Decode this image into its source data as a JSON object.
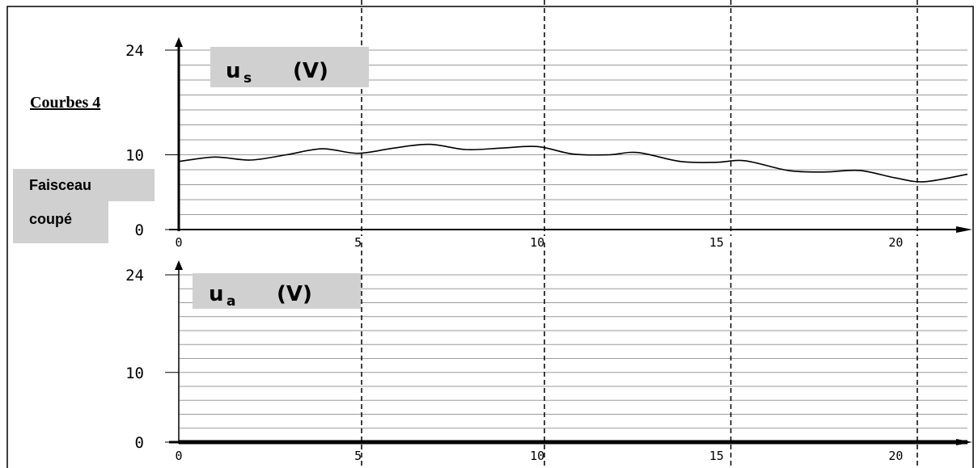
{
  "annotations": {
    "title": "Courbes 4",
    "beam_line1": "Faisceau",
    "beam_line2": "coupé"
  },
  "chart_data": [
    {
      "type": "line",
      "y_label_main": "u",
      "y_label_sub": "s",
      "y_label_unit": "(V)",
      "ylim": [
        0,
        24
      ],
      "y_ticks": [
        0,
        10,
        24
      ],
      "xlim": [
        0,
        22
      ],
      "x_ticks": [
        0,
        5,
        10,
        15,
        20
      ],
      "grid": true,
      "dashed_x": [
        5.1,
        10.2,
        15.4,
        20.6
      ],
      "series": [
        {
          "x": [
            0,
            1,
            2,
            3,
            4,
            5,
            6,
            7,
            8,
            9,
            10,
            11,
            12,
            12.8,
            14,
            15,
            15.8,
            17,
            18,
            19,
            20,
            20.8,
            22
          ],
          "y": [
            9.1,
            9.7,
            9.3,
            10.0,
            10.8,
            10.2,
            10.9,
            11.4,
            10.7,
            10.9,
            11.1,
            10.1,
            10.0,
            10.3,
            9.1,
            9.0,
            9.2,
            7.9,
            7.7,
            7.9,
            6.9,
            6.4,
            7.4
          ]
        }
      ]
    },
    {
      "type": "line",
      "y_label_main": "u",
      "y_label_sub": "a",
      "y_label_unit": "(V)",
      "ylim": [
        0,
        24
      ],
      "y_ticks": [
        0,
        10,
        24
      ],
      "xlim": [
        0,
        22
      ],
      "x_ticks": [
        0,
        5,
        10,
        15,
        20
      ],
      "grid": true,
      "dashed_x": [
        5.1,
        10.2,
        15.4,
        20.6
      ],
      "series": [
        {
          "x": [
            0,
            22
          ],
          "y": [
            0,
            0
          ]
        }
      ]
    }
  ]
}
